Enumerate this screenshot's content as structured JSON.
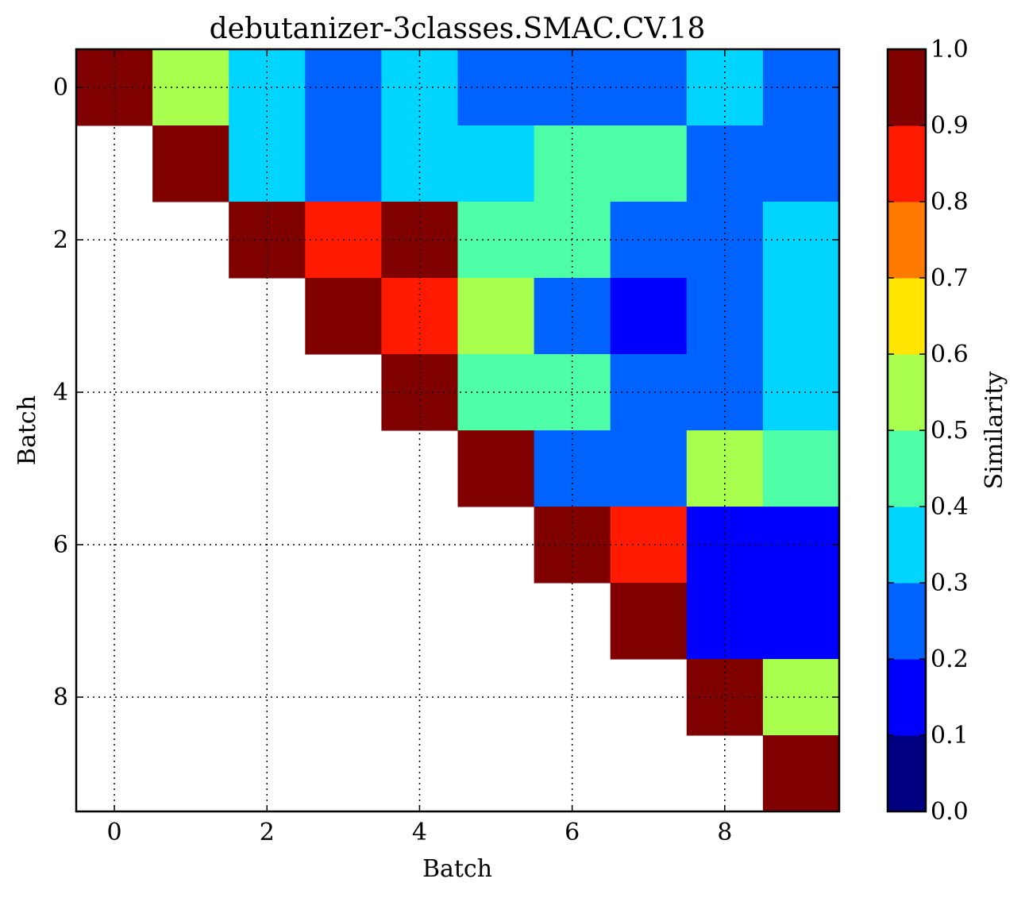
{
  "chart_data": {
    "type": "heatmap",
    "title": "debutanizer-3classes.SMAC.CV.18",
    "xlabel": "Batch",
    "ylabel": "Batch",
    "colorbar_label": "Similarity",
    "xlim": [
      -0.5,
      9.5
    ],
    "ylim": [
      9.5,
      -0.5
    ],
    "x_ticks": [
      0,
      2,
      4,
      6,
      8
    ],
    "y_ticks": [
      0,
      2,
      4,
      6,
      8
    ],
    "grid": true,
    "colormap": "jet",
    "color_range": [
      0.0,
      1.0
    ],
    "colorbar_ticks": [
      "0.0",
      "0.1",
      "0.2",
      "0.3",
      "0.4",
      "0.5",
      "0.6",
      "0.7",
      "0.8",
      "0.9",
      "1.0"
    ],
    "colorbar_bins": [
      {
        "low": 0.0,
        "high": 0.1,
        "color": "#000080"
      },
      {
        "low": 0.1,
        "high": 0.2,
        "color": "#0000ff"
      },
      {
        "low": 0.2,
        "high": 0.3,
        "color": "#0063ff"
      },
      {
        "low": 0.3,
        "high": 0.4,
        "color": "#00d5ff"
      },
      {
        "low": 0.4,
        "high": 0.5,
        "color": "#4effa8"
      },
      {
        "low": 0.5,
        "high": 0.6,
        "color": "#a8ff4e"
      },
      {
        "low": 0.6,
        "high": 0.7,
        "color": "#ffe500"
      },
      {
        "low": 0.7,
        "high": 0.8,
        "color": "#ff7a00"
      },
      {
        "low": 0.8,
        "high": 0.9,
        "color": "#ff1a00"
      },
      {
        "low": 0.9,
        "high": 1.0,
        "color": "#800000"
      }
    ],
    "matrix": [
      [
        0.95,
        0.55,
        0.35,
        0.25,
        0.35,
        0.25,
        0.25,
        0.25,
        0.35,
        0.25
      ],
      [
        null,
        0.95,
        0.35,
        0.25,
        0.35,
        0.35,
        0.45,
        0.45,
        0.25,
        0.25
      ],
      [
        null,
        null,
        0.95,
        0.85,
        0.95,
        0.45,
        0.45,
        0.25,
        0.25,
        0.35
      ],
      [
        null,
        null,
        null,
        0.95,
        0.85,
        0.55,
        0.25,
        0.15,
        0.25,
        0.35
      ],
      [
        null,
        null,
        null,
        null,
        0.95,
        0.45,
        0.45,
        0.25,
        0.25,
        0.35
      ],
      [
        null,
        null,
        null,
        null,
        null,
        0.95,
        0.25,
        0.25,
        0.55,
        0.45
      ],
      [
        null,
        null,
        null,
        null,
        null,
        null,
        0.95,
        0.85,
        0.15,
        0.15
      ],
      [
        null,
        null,
        null,
        null,
        null,
        null,
        null,
        0.95,
        0.15,
        0.15
      ],
      [
        null,
        null,
        null,
        null,
        null,
        null,
        null,
        null,
        0.95,
        0.55
      ],
      [
        null,
        null,
        null,
        null,
        null,
        null,
        null,
        null,
        null,
        0.95
      ]
    ]
  }
}
